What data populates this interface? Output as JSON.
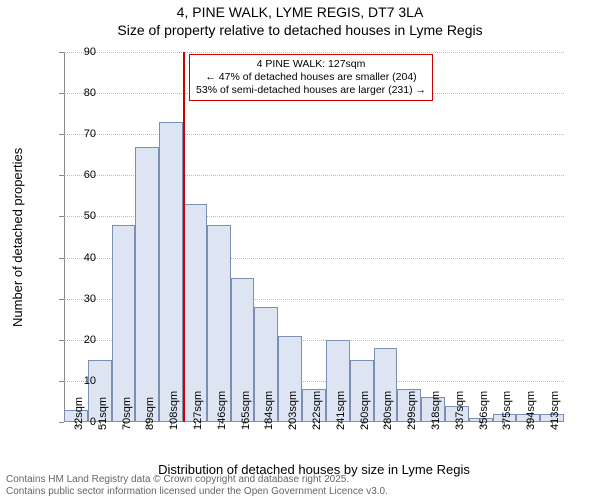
{
  "title_line1": "4, PINE WALK, LYME REGIS, DT7 3LA",
  "title_line2": "Size of property relative to detached houses in Lyme Regis",
  "ylabel": "Number of detached properties",
  "xlabel": "Distribution of detached houses by size in Lyme Regis",
  "footer_line1": "Contains HM Land Registry data © Crown copyright and database right 2025.",
  "footer_line2": "Contains public sector information licensed under the Open Government Licence v3.0.",
  "annot_line1": "4 PINE WALK: 127sqm",
  "annot_line2": "← 47% of detached houses are smaller (204)",
  "annot_line3": "53% of semi-detached houses are larger (231) →",
  "marker_x_category": 5,
  "chart": {
    "type": "histogram",
    "background": "#ffffff",
    "bar_fill": "#dde5f2",
    "bar_border": "#7a8fb3",
    "grid_color": "#bbbbbb",
    "axis_color": "#888888",
    "marker_color": "#d00000",
    "title_fontsize": 14,
    "label_fontsize": 13,
    "tick_fontsize": 11,
    "annot_fontsize": 10.5,
    "ylim": [
      0,
      90
    ],
    "ytick_step": 10,
    "x_categories": [
      "32sqm",
      "51sqm",
      "70sqm",
      "89sqm",
      "108sqm",
      "127sqm",
      "146sqm",
      "165sqm",
      "184sqm",
      "203sqm",
      "222sqm",
      "241sqm",
      "260sqm",
      "280sqm",
      "299sqm",
      "318sqm",
      "337sqm",
      "356sqm",
      "375sqm",
      "394sqm",
      "413sqm"
    ],
    "values": [
      3,
      15,
      48,
      67,
      73,
      53,
      48,
      35,
      28,
      21,
      8,
      20,
      15,
      18,
      8,
      6,
      4,
      1,
      2,
      2,
      2
    ]
  }
}
